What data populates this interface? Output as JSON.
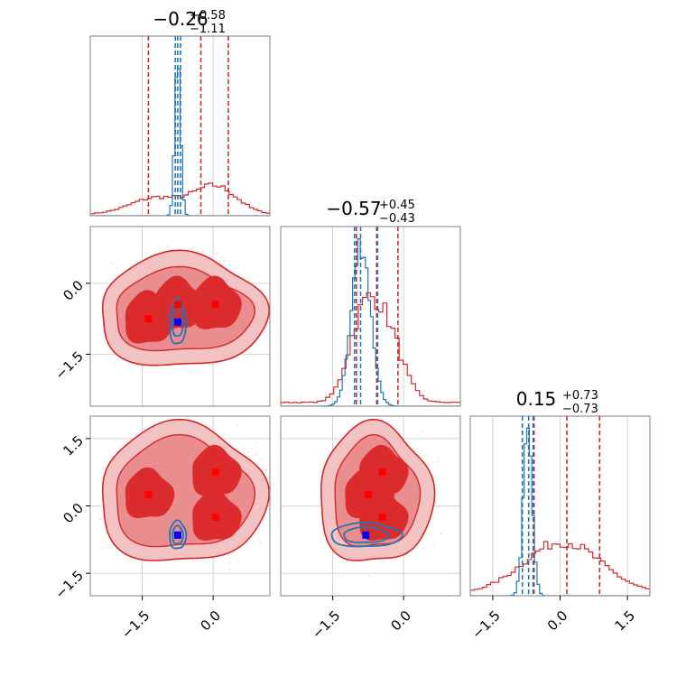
{
  "chart_data": {
    "type": "corner",
    "parameters": [
      {
        "title_value": "−0.26",
        "title_plus": "+0.58",
        "title_minus": "−1.11"
      },
      {
        "title_value": "−0.57",
        "title_plus": "+0.45",
        "title_minus": "−0.43"
      },
      {
        "title_value": "0.15",
        "title_plus": "+0.73",
        "title_minus": "−0.73"
      }
    ],
    "axis_ticks": {
      "values": [
        -1.5,
        0.0,
        1.5
      ],
      "labels": [
        "−1.5",
        "0.0",
        "1.5"
      ]
    },
    "ranges": [
      [
        -2.6,
        1.2
      ],
      [
        -2.6,
        1.2
      ],
      [
        -2.0,
        2.0
      ]
    ],
    "grid": true,
    "colors": {
      "red": "#d62728",
      "blue": "#1f77b4",
      "red_fill_outer": "#f3c2c2",
      "red_fill_mid": "#ea8d8e",
      "red_fill_inner": "#dc2b2c",
      "marker_red": "#ff0000",
      "marker_blue": "#0000ff"
    },
    "series": [
      {
        "color": "red",
        "quantiles": [
          [
            -1.37,
            -0.26,
            0.32
          ],
          [
            -1.0,
            -0.57,
            -0.12
          ],
          [
            -0.58,
            0.15,
            0.88
          ]
        ],
        "modes_x0x1": [
          [
            -1.37,
            -0.75
          ],
          [
            -0.75,
            -0.45
          ],
          [
            0.05,
            -0.45
          ]
        ],
        "modes_x0x2": [
          [
            -1.37,
            0.25
          ],
          [
            0.05,
            0.75
          ],
          [
            0.05,
            -0.25
          ]
        ],
        "modes_x1x2": [
          [
            -0.75,
            0.25
          ],
          [
            -0.45,
            0.75
          ],
          [
            -0.45,
            -0.25
          ]
        ]
      },
      {
        "color": "blue",
        "quantiles": [
          [
            -0.8,
            -0.75,
            -0.69
          ],
          [
            -1.04,
            -0.91,
            -0.55
          ],
          [
            -0.84,
            -0.7,
            -0.6
          ]
        ],
        "modes_x0x1": [
          [
            -0.75,
            -0.82
          ]
        ],
        "modes_x0x2": [
          [
            -0.75,
            -0.65
          ]
        ],
        "modes_x1x2": [
          [
            -0.8,
            -0.65
          ]
        ]
      }
    ]
  }
}
